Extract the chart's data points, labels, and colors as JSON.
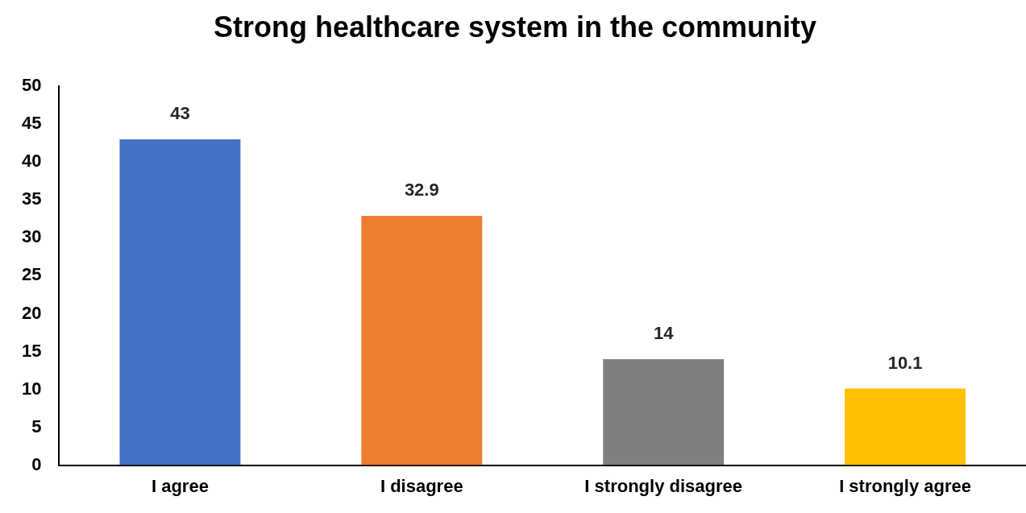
{
  "chart_data": {
    "type": "bar",
    "title": "Strong healthcare system in the community",
    "categories": [
      "I agree",
      "I disagree",
      "I strongly disagree",
      "I strongly agree"
    ],
    "values": [
      43,
      32.9,
      14,
      10.1
    ],
    "colors": [
      "#4472c4",
      "#ed7d31",
      "#7f7f7f",
      "#ffc000"
    ],
    "ylim": [
      0,
      50
    ],
    "yticks": [
      0,
      5,
      10,
      15,
      20,
      25,
      30,
      35,
      40,
      45,
      50
    ],
    "grid": false,
    "legend": false,
    "data_labels": true
  }
}
